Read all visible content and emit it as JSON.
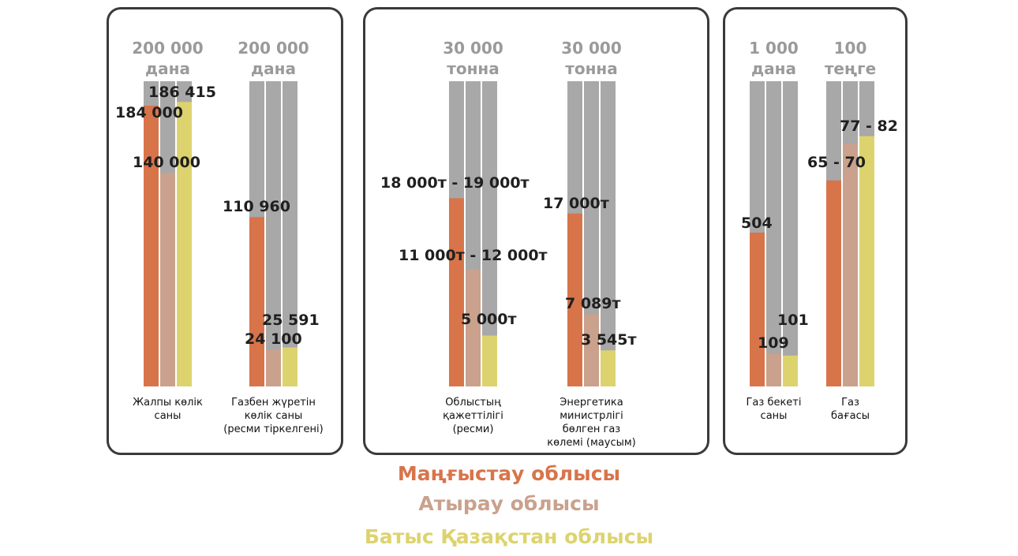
{
  "colors": {
    "mangystau": "#D8744A",
    "atyrau": "#C9A18C",
    "batys": "#DDD36E",
    "bar_bg": "#A8A8A8",
    "max_label": "#9A9A9A",
    "value_label": "#1F1F1F"
  },
  "legend": [
    {
      "key": "mangystau",
      "label": "Маңғыстау облысы"
    },
    {
      "key": "atyrau",
      "label": "Атырау облысы"
    },
    {
      "key": "batys",
      "label": "Батыс Қазақстан облысы"
    }
  ],
  "chart_data": {
    "type": "bar",
    "series_names": [
      "Маңғыстау облысы",
      "Атырау облысы",
      "Батыс Қазақстан облысы"
    ],
    "groups": [
      {
        "max_label": [
          "200 000",
          "дана"
        ],
        "max": 200000,
        "values": [
          184000,
          140000,
          186415
        ],
        "labels": [
          "184 000",
          "140 000",
          "186 415"
        ],
        "category": [
          "Жалпы көлік",
          "саны"
        ]
      },
      {
        "max_label": [
          "200 000",
          "дана"
        ],
        "max": 200000,
        "values": [
          110960,
          24100,
          25591
        ],
        "labels": [
          "110 960",
          "24 100",
          "25 591"
        ],
        "category": [
          "Газбен жүретін",
          "көлік саны",
          "(ресми тіркелгені)"
        ]
      },
      {
        "max_label": [
          "30 000",
          "тонна"
        ],
        "max": 30000,
        "values": [
          18500,
          11500,
          5000
        ],
        "labels": [
          "18 000т - 19 000т",
          "11 000т - 12 000т",
          "5 000т"
        ],
        "category": [
          "Облыстың",
          "қажеттілігі",
          "(ресми)"
        ]
      },
      {
        "max_label": [
          "30 000",
          "тонна"
        ],
        "max": 30000,
        "values": [
          17000,
          7089,
          3545
        ],
        "labels": [
          "17 000т",
          "7 089т",
          "3 545т"
        ],
        "category": [
          "Энергетика",
          "министрлігі",
          "бөлген газ",
          "көлемі (маусым)"
        ]
      },
      {
        "max_label": [
          "1 000",
          "дана"
        ],
        "max": 1000,
        "values": [
          504,
          109,
          101
        ],
        "labels": [
          "504",
          "109",
          "101"
        ],
        "category": [
          "Газ бекеті",
          "саны"
        ]
      },
      {
        "max_label": [
          "100",
          "теңге"
        ],
        "max": 100,
        "values": [
          67.5,
          79.5,
          82
        ],
        "labels": [
          "65 - 70",
          "",
          "77 - 82"
        ],
        "category": [
          "Газ",
          "бағасы"
        ]
      }
    ]
  }
}
